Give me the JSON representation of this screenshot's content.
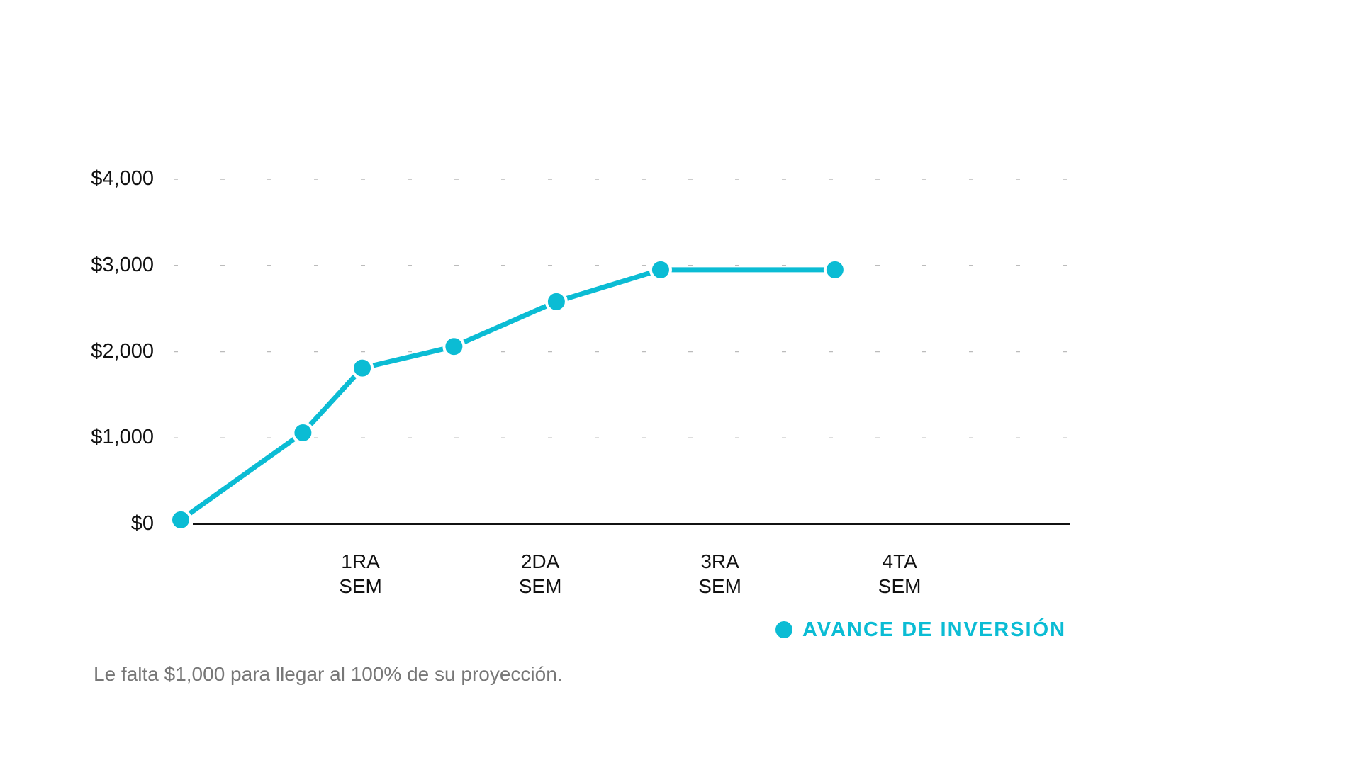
{
  "chart_data": {
    "type": "line",
    "title": "",
    "xlabel": "",
    "ylabel": "",
    "ylim": [
      0,
      4000
    ],
    "yticks": [
      {
        "value": 0,
        "label": "$0"
      },
      {
        "value": 1000,
        "label": "$1,000"
      },
      {
        "value": 2000,
        "label": "$2,000"
      },
      {
        "value": 3000,
        "label": "$3,000"
      },
      {
        "value": 4000,
        "label": "$4,000"
      }
    ],
    "xlim": [
      0,
      4.95
    ],
    "xticks": [
      {
        "x": 1,
        "line1": "1RA",
        "line2": "SEM"
      },
      {
        "x": 2,
        "line1": "2DA",
        "line2": "SEM"
      },
      {
        "x": 3,
        "line1": "3RA",
        "line2": "SEM"
      },
      {
        "x": 4,
        "line1": "4TA",
        "line2": "SEM"
      }
    ],
    "grid": true,
    "legend_position": "bottom-right",
    "series": [
      {
        "name": "AVANCE DE INVERSIÓN",
        "color": "#0BBCD4",
        "points": [
          {
            "x": 0,
            "y": 50
          },
          {
            "x": 0.68,
            "y": 1060
          },
          {
            "x": 1.01,
            "y": 1810
          },
          {
            "x": 1.52,
            "y": 2060
          },
          {
            "x": 2.09,
            "y": 2580
          },
          {
            "x": 2.67,
            "y": 2950
          },
          {
            "x": 3.64,
            "y": 2950
          }
        ]
      }
    ]
  },
  "footnote": "Le falta $1,000 para llegar al 100% de su proyección."
}
